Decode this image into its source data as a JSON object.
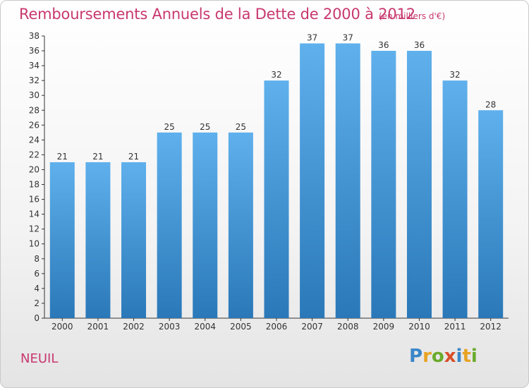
{
  "header": {
    "title": "Remboursements Annuels de la Dette de 2000 à 2012",
    "subtitle": "(en milliers d'€)"
  },
  "footer": {
    "place": "NEUIL",
    "logo": [
      "P",
      "r",
      "o",
      "x",
      "i",
      "t",
      "i"
    ],
    "logo_colors": [
      "#3a86c8",
      "#e8a323",
      "#6aab2b",
      "#d94f2a",
      "#3a86c8",
      "#e8a323",
      "#6aab2b"
    ]
  },
  "chart_data": {
    "type": "bar",
    "title": "Remboursements Annuels de la Dette de 2000 à 2012",
    "subtitle": "(en milliers d'€)",
    "xlabel": "",
    "ylabel": "",
    "categories": [
      "2000",
      "2001",
      "2002",
      "2003",
      "2004",
      "2005",
      "2006",
      "2007",
      "2008",
      "2009",
      "2010",
      "2011",
      "2012"
    ],
    "values": [
      21,
      21,
      21,
      25,
      25,
      25,
      32,
      37,
      37,
      36,
      36,
      32,
      28
    ],
    "ylim": [
      0,
      38
    ],
    "yticks": [
      0,
      2,
      4,
      6,
      8,
      10,
      12,
      14,
      16,
      18,
      20,
      22,
      24,
      26,
      28,
      30,
      32,
      34,
      36,
      38
    ],
    "grid": false,
    "bar_color_top": "#5fb0ec",
    "bar_color_bottom": "#2a78b8",
    "data_labels": true
  }
}
